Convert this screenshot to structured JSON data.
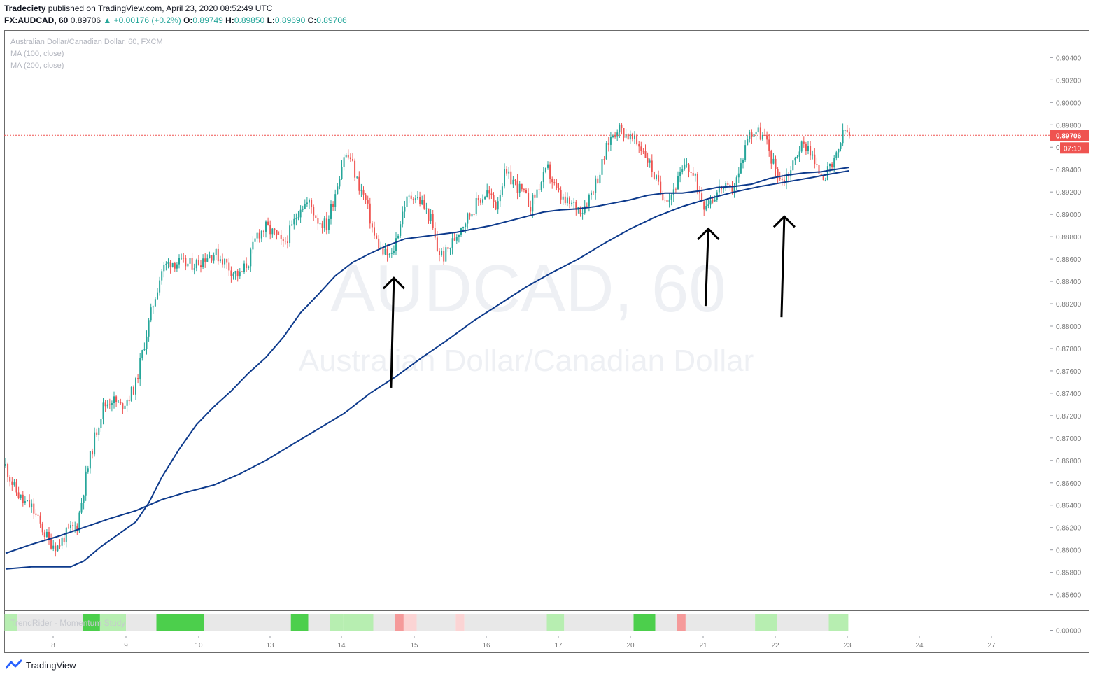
{
  "header": {
    "publisher": "Tradeciety",
    "published_text": "published on TradingView.com, April 23, 2020 08:52:49 UTC",
    "symbol": "FX:AUDCAD, 60",
    "last": "0.89706",
    "change": "+0.00176 (+0.2%)",
    "o_label": "O:",
    "o": "0.89749",
    "h_label": "H:",
    "h": "0.89850",
    "l_label": "L:",
    "l": "0.89690",
    "c_label": "C:",
    "c": "0.89706"
  },
  "legend": {
    "instrument": "Australian Dollar/Canadian Dollar, 60, FXCM",
    "ma1": "MA (100, close)",
    "ma2": "MA (200, close)"
  },
  "watermark": {
    "symbol": "AUDCAD, 60",
    "name": "Australian Dollar/Canadian Dollar"
  },
  "indicator": {
    "label": "TrendRider - Momentum Study",
    "value_label": "0.00000"
  },
  "price_badge": {
    "price": "0.89706",
    "countdown": "07:10"
  },
  "footer": {
    "brand": "TradingView"
  },
  "colors": {
    "up": "#26a69a",
    "down": "#ef5350",
    "ma": "#0d3a8c",
    "price_line": "#ef5350",
    "axis_text": "#777777",
    "watermark": "#eef0f4"
  },
  "chart_data": {
    "type": "candlestick",
    "symbol": "AUDCAD",
    "timeframe": "60",
    "y_axis_labels": [
      "0.90400",
      "0.90200",
      "0.90000",
      "0.89800",
      "0.89600",
      "0.89400",
      "0.89200",
      "0.89000",
      "0.88800",
      "0.88600",
      "0.88400",
      "0.88200",
      "0.88000",
      "0.87800",
      "0.87600",
      "0.87400",
      "0.87200",
      "0.87000",
      "0.86800",
      "0.86600",
      "0.86400",
      "0.86200",
      "0.86000",
      "0.85800",
      "0.85600"
    ],
    "ylim": [
      0.8546,
      0.9064
    ],
    "x_axis_labels": [
      "8",
      "9",
      "10",
      "13",
      "14",
      "15",
      "16",
      "17",
      "20",
      "21",
      "22",
      "23",
      "24",
      "27"
    ],
    "last_price": 0.89706,
    "price_path": [
      [
        0,
        0.8675
      ],
      [
        4,
        0.8655
      ],
      [
        8,
        0.8643
      ],
      [
        12,
        0.8638
      ],
      [
        16,
        0.8622
      ],
      [
        20,
        0.8608
      ],
      [
        24,
        0.8603
      ],
      [
        27,
        0.8612
      ],
      [
        30,
        0.8618
      ],
      [
        33,
        0.8622
      ],
      [
        37,
        0.8665
      ],
      [
        41,
        0.87
      ],
      [
        45,
        0.8728
      ],
      [
        49,
        0.8735
      ],
      [
        53,
        0.8728
      ],
      [
        57,
        0.8737
      ],
      [
        60,
        0.8748
      ],
      [
        64,
        0.8785
      ],
      [
        68,
        0.882
      ],
      [
        72,
        0.885
      ],
      [
        76,
        0.8858
      ],
      [
        80,
        0.8856
      ],
      [
        84,
        0.8855
      ],
      [
        88,
        0.8856
      ],
      [
        92,
        0.8862
      ],
      [
        96,
        0.8865
      ],
      [
        100,
        0.886
      ],
      [
        104,
        0.885
      ],
      [
        108,
        0.8845
      ],
      [
        112,
        0.8858
      ],
      [
        116,
        0.8882
      ],
      [
        120,
        0.8888
      ],
      [
        124,
        0.8882
      ],
      [
        128,
        0.8872
      ],
      [
        132,
        0.8888
      ],
      [
        136,
        0.8908
      ],
      [
        140,
        0.891
      ],
      [
        144,
        0.8895
      ],
      [
        148,
        0.889
      ],
      [
        152,
        0.892
      ],
      [
        156,
        0.8953
      ],
      [
        159,
        0.895
      ],
      [
        162,
        0.893
      ],
      [
        166,
        0.8912
      ],
      [
        170,
        0.888
      ],
      [
        174,
        0.8865
      ],
      [
        178,
        0.8862
      ],
      [
        181,
        0.8885
      ],
      [
        184,
        0.891
      ],
      [
        188,
        0.8918
      ],
      [
        192,
        0.891
      ],
      [
        196,
        0.8895
      ],
      [
        199,
        0.8868
      ],
      [
        202,
        0.8862
      ],
      [
        206,
        0.8875
      ],
      [
        210,
        0.889
      ],
      [
        214,
        0.89
      ],
      [
        218,
        0.8912
      ],
      [
        222,
        0.892
      ],
      [
        226,
        0.8908
      ],
      [
        230,
        0.8935
      ],
      [
        234,
        0.893
      ],
      [
        238,
        0.892
      ],
      [
        242,
        0.8908
      ],
      [
        246,
        0.8925
      ],
      [
        250,
        0.894
      ],
      [
        254,
        0.892
      ],
      [
        258,
        0.891
      ],
      [
        262,
        0.8908
      ],
      [
        266,
        0.8905
      ],
      [
        270,
        0.892
      ],
      [
        274,
        0.8938
      ],
      [
        278,
        0.8965
      ],
      [
        282,
        0.8978
      ],
      [
        286,
        0.8972
      ],
      [
        290,
        0.8965
      ],
      [
        294,
        0.8958
      ],
      [
        298,
        0.894
      ],
      [
        302,
        0.892
      ],
      [
        306,
        0.8915
      ],
      [
        310,
        0.893
      ],
      [
        314,
        0.8945
      ],
      [
        318,
        0.893
      ],
      [
        322,
        0.891
      ],
      [
        326,
        0.8915
      ],
      [
        330,
        0.8925
      ],
      [
        334,
        0.892
      ],
      [
        338,
        0.8935
      ],
      [
        342,
        0.897
      ],
      [
        346,
        0.8975
      ],
      [
        350,
        0.8968
      ],
      [
        354,
        0.8945
      ],
      [
        358,
        0.893
      ],
      [
        362,
        0.894
      ],
      [
        366,
        0.896
      ],
      [
        370,
        0.8962
      ],
      [
        374,
        0.894
      ],
      [
        378,
        0.8935
      ],
      [
        382,
        0.8945
      ],
      [
        385,
        0.8965
      ],
      [
        387,
        0.8975
      ],
      [
        389,
        0.8971
      ]
    ],
    "ma100_path": [
      [
        0,
        0.8583
      ],
      [
        12,
        0.8585
      ],
      [
        20,
        0.8585
      ],
      [
        30,
        0.8585
      ],
      [
        36,
        0.859
      ],
      [
        44,
        0.8603
      ],
      [
        52,
        0.8614
      ],
      [
        60,
        0.8625
      ],
      [
        66,
        0.8642
      ],
      [
        72,
        0.8665
      ],
      [
        80,
        0.869
      ],
      [
        88,
        0.8712
      ],
      [
        96,
        0.8728
      ],
      [
        104,
        0.8742
      ],
      [
        112,
        0.8758
      ],
      [
        120,
        0.8772
      ],
      [
        128,
        0.879
      ],
      [
        136,
        0.8812
      ],
      [
        144,
        0.8828
      ],
      [
        152,
        0.8845
      ],
      [
        160,
        0.8857
      ],
      [
        168,
        0.8865
      ],
      [
        176,
        0.8872
      ],
      [
        184,
        0.8878
      ],
      [
        192,
        0.888
      ],
      [
        200,
        0.8882
      ],
      [
        208,
        0.8884
      ],
      [
        216,
        0.8887
      ],
      [
        224,
        0.889
      ],
      [
        232,
        0.8894
      ],
      [
        240,
        0.8898
      ],
      [
        248,
        0.8902
      ],
      [
        256,
        0.8904
      ],
      [
        264,
        0.8905
      ],
      [
        272,
        0.8907
      ],
      [
        280,
        0.891
      ],
      [
        288,
        0.8913
      ],
      [
        296,
        0.8917
      ],
      [
        304,
        0.8919
      ],
      [
        312,
        0.8919
      ],
      [
        320,
        0.8921
      ],
      [
        328,
        0.8924
      ],
      [
        336,
        0.8925
      ],
      [
        344,
        0.8927
      ],
      [
        352,
        0.8932
      ],
      [
        360,
        0.8935
      ],
      [
        368,
        0.8937
      ],
      [
        376,
        0.8938
      ],
      [
        382,
        0.894
      ],
      [
        389,
        0.8942
      ]
    ],
    "ma200_path": [
      [
        0,
        0.8597
      ],
      [
        12,
        0.8605
      ],
      [
        24,
        0.8612
      ],
      [
        36,
        0.862
      ],
      [
        48,
        0.8628
      ],
      [
        60,
        0.8635
      ],
      [
        72,
        0.8645
      ],
      [
        84,
        0.8652
      ],
      [
        96,
        0.8658
      ],
      [
        108,
        0.8668
      ],
      [
        120,
        0.868
      ],
      [
        132,
        0.8694
      ],
      [
        144,
        0.8708
      ],
      [
        156,
        0.8722
      ],
      [
        168,
        0.874
      ],
      [
        180,
        0.8755
      ],
      [
        192,
        0.8772
      ],
      [
        204,
        0.8788
      ],
      [
        216,
        0.8805
      ],
      [
        228,
        0.882
      ],
      [
        240,
        0.8835
      ],
      [
        252,
        0.8848
      ],
      [
        264,
        0.886
      ],
      [
        276,
        0.8874
      ],
      [
        288,
        0.8887
      ],
      [
        300,
        0.8898
      ],
      [
        312,
        0.8907
      ],
      [
        324,
        0.8914
      ],
      [
        336,
        0.892
      ],
      [
        348,
        0.8925
      ],
      [
        360,
        0.8929
      ],
      [
        372,
        0.8933
      ],
      [
        380,
        0.8936
      ],
      [
        389,
        0.8939
      ]
    ],
    "arrows": [
      {
        "x_bar": 179,
        "tail_price": 0.8745,
        "tip_price": 0.8843
      },
      {
        "x_bar": 324,
        "tail_price": 0.8818,
        "tip_price": 0.8887
      },
      {
        "x_bar": 359,
        "tail_price": 0.8808,
        "tip_price": 0.8898
      }
    ],
    "momentum_segments": [
      {
        "x0": 0,
        "x1": 6,
        "state": "lightgreen"
      },
      {
        "x0": 6,
        "x1": 36,
        "state": "gray"
      },
      {
        "x0": 36,
        "x1": 44,
        "state": "green"
      },
      {
        "x0": 44,
        "x1": 56,
        "state": "lightgreen"
      },
      {
        "x0": 56,
        "x1": 70,
        "state": "gray"
      },
      {
        "x0": 70,
        "x1": 92,
        "state": "green"
      },
      {
        "x0": 92,
        "x1": 132,
        "state": "gray"
      },
      {
        "x0": 132,
        "x1": 140,
        "state": "green"
      },
      {
        "x0": 140,
        "x1": 150,
        "state": "gray"
      },
      {
        "x0": 150,
        "x1": 156,
        "state": "lightgreen"
      },
      {
        "x0": 156,
        "x1": 170,
        "state": "lightgreen"
      },
      {
        "x0": 170,
        "x1": 180,
        "state": "gray"
      },
      {
        "x0": 180,
        "x1": 184,
        "state": "red"
      },
      {
        "x0": 184,
        "x1": 190,
        "state": "pink"
      },
      {
        "x0": 190,
        "x1": 208,
        "state": "gray"
      },
      {
        "x0": 208,
        "x1": 212,
        "state": "pink"
      },
      {
        "x0": 212,
        "x1": 250,
        "state": "gray"
      },
      {
        "x0": 250,
        "x1": 258,
        "state": "lightgreen"
      },
      {
        "x0": 258,
        "x1": 290,
        "state": "gray"
      },
      {
        "x0": 290,
        "x1": 300,
        "state": "green"
      },
      {
        "x0": 300,
        "x1": 310,
        "state": "gray"
      },
      {
        "x0": 310,
        "x1": 314,
        "state": "red"
      },
      {
        "x0": 314,
        "x1": 346,
        "state": "gray"
      },
      {
        "x0": 346,
        "x1": 356,
        "state": "lightgreen"
      },
      {
        "x0": 356,
        "x1": 380,
        "state": "gray"
      },
      {
        "x0": 380,
        "x1": 389,
        "state": "lightgreen"
      }
    ]
  }
}
